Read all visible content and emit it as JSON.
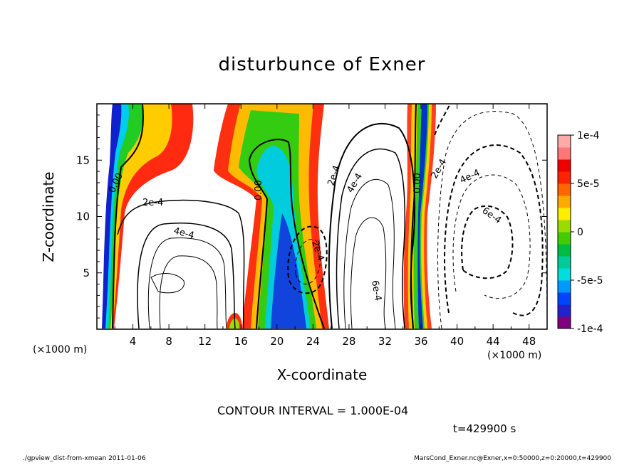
{
  "title": "disturbunce of Exner",
  "chart_data": {
    "type": "contour",
    "title": "disturbunce of Exner",
    "xlabel": "X-coordinate",
    "ylabel": "Z-coordinate",
    "x_unit": "(×1000 m)",
    "y_unit": "(×1000 m)",
    "xlim": [
      0,
      50
    ],
    "ylim": [
      0,
      20
    ],
    "xticks": [
      4,
      8,
      12,
      16,
      20,
      24,
      28,
      32,
      36,
      40,
      44,
      48
    ],
    "yticks": [
      5,
      10,
      15
    ],
    "colorbar": {
      "range": [
        -0.0001,
        0.0001
      ],
      "tick_labels": [
        "1e-4",
        "5e-5",
        "0",
        "-5e-5",
        "-1e-4"
      ],
      "tick_values": [
        0.0001,
        5e-05,
        0,
        -5e-05,
        -0.0001
      ],
      "colors": [
        "#800080",
        "#2222cc",
        "#0044ff",
        "#0099ff",
        "#00dddd",
        "#00cc99",
        "#00bb44",
        "#44cc00",
        "#99dd00",
        "#ffee00",
        "#ffaa00",
        "#ff6600",
        "#ff2200",
        "#ee0000",
        "#ff7777",
        "#ffaaaa"
      ]
    },
    "contour_interval": "1.000E-04",
    "contour_labels": [
      "0.00",
      "2e-4",
      "4e-4",
      "0.00",
      "2e-4",
      "4e-4",
      "2e-4",
      "6e-4",
      "0.00",
      "2e-4",
      "4e-4",
      "6e-4"
    ],
    "grid": false
  },
  "contour_interval_text": "CONTOUR INTERVAL = 1.000E-04",
  "time_text": "t=429900 s",
  "footer_left": "./gpview_dist-from-xmean  2011-01-06",
  "footer_right": "MarsCond_Exner.nc@Exner,x=0:50000,z=0:20000,t=429900"
}
